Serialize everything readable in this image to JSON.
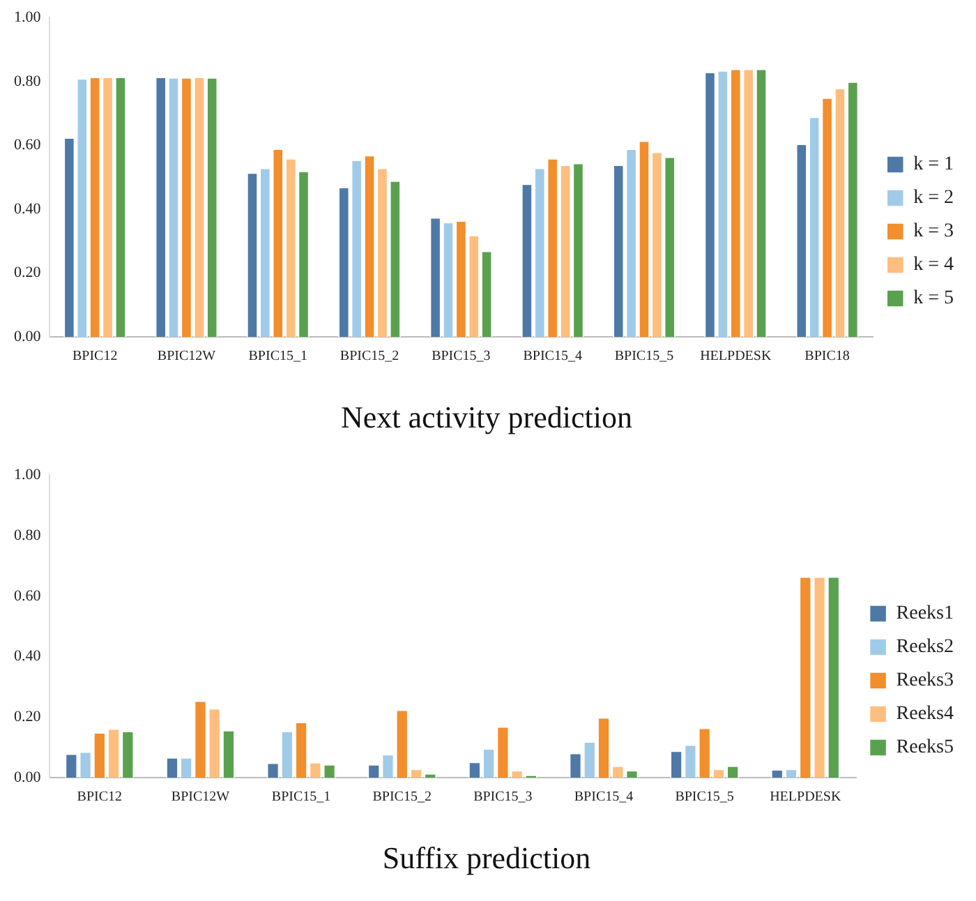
{
  "chart_data": [
    {
      "type": "bar",
      "title": "Next activity prediction",
      "categories": [
        "BPIC12",
        "BPIC12W",
        "BPIC15_1",
        "BPIC15_2",
        "BPIC15_3",
        "BPIC15_4",
        "BPIC15_5",
        "HELPDESK",
        "BPIC18"
      ],
      "series": [
        {
          "name": "k = 1",
          "color": "#4e79a7",
          "values": [
            0.625,
            0.815,
            0.515,
            0.47,
            0.375,
            0.48,
            0.54,
            0.83,
            0.605
          ]
        },
        {
          "name": "k = 2",
          "color": "#a0cbe8",
          "values": [
            0.81,
            0.813,
            0.53,
            0.555,
            0.36,
            0.53,
            0.59,
            0.835,
            0.69
          ]
        },
        {
          "name": "k = 3",
          "color": "#f28e2b",
          "values": [
            0.815,
            0.813,
            0.59,
            0.57,
            0.365,
            0.56,
            0.615,
            0.84,
            0.75
          ]
        },
        {
          "name": "k = 4",
          "color": "#ffbe7d",
          "values": [
            0.815,
            0.815,
            0.56,
            0.53,
            0.32,
            0.54,
            0.58,
            0.84,
            0.78
          ]
        },
        {
          "name": "k = 5",
          "color": "#59a14f",
          "values": [
            0.815,
            0.813,
            0.52,
            0.49,
            0.27,
            0.545,
            0.565,
            0.84,
            0.8
          ]
        }
      ],
      "ylim": [
        0,
        1
      ],
      "yticks": [
        {
          "value": 0,
          "label": "0.00"
        },
        {
          "value": 0.2,
          "label": "0.20"
        },
        {
          "value": 0.4,
          "label": "0.40"
        },
        {
          "value": 0.6,
          "label": "0.60"
        },
        {
          "value": 0.8,
          "label": "0.80"
        },
        {
          "value": 1,
          "label": "1.00"
        }
      ],
      "grid": false,
      "legend": "right"
    },
    {
      "type": "bar",
      "title": "Suffix prediction",
      "categories": [
        "BPIC12",
        "BPIC12W",
        "BPIC15_1",
        "BPIC15_2",
        "BPIC15_3",
        "BPIC15_4",
        "BPIC15_5",
        "HELPDESK"
      ],
      "series": [
        {
          "name": "Reeks1",
          "color": "#4e79a7",
          "values": [
            0.08,
            0.068,
            0.05,
            0.045,
            0.053,
            0.082,
            0.09,
            0.028
          ]
        },
        {
          "name": "Reeks2",
          "color": "#a0cbe8",
          "values": [
            0.087,
            0.068,
            0.155,
            0.078,
            0.097,
            0.12,
            0.11,
            0.03
          ]
        },
        {
          "name": "Reeks3",
          "color": "#f28e2b",
          "values": [
            0.15,
            0.255,
            0.185,
            0.225,
            0.17,
            0.2,
            0.165,
            0.665
          ]
        },
        {
          "name": "Reeks4",
          "color": "#ffbe7d",
          "values": [
            0.163,
            0.23,
            0.052,
            0.03,
            0.025,
            0.04,
            0.03,
            0.665
          ]
        },
        {
          "name": "Reeks5",
          "color": "#59a14f",
          "values": [
            0.155,
            0.158,
            0.045,
            0.015,
            0.01,
            0.025,
            0.04,
            0.665
          ]
        }
      ],
      "ylim": [
        0,
        1
      ],
      "yticks": [
        {
          "value": 0,
          "label": "0.00"
        },
        {
          "value": 0.2,
          "label": "0.20"
        },
        {
          "value": 0.4,
          "label": "0.40"
        },
        {
          "value": 0.6,
          "label": "0.60"
        },
        {
          "value": 0.8,
          "label": "0.80"
        },
        {
          "value": 1,
          "label": "1.00"
        }
      ],
      "grid": false,
      "legend": "right"
    }
  ]
}
